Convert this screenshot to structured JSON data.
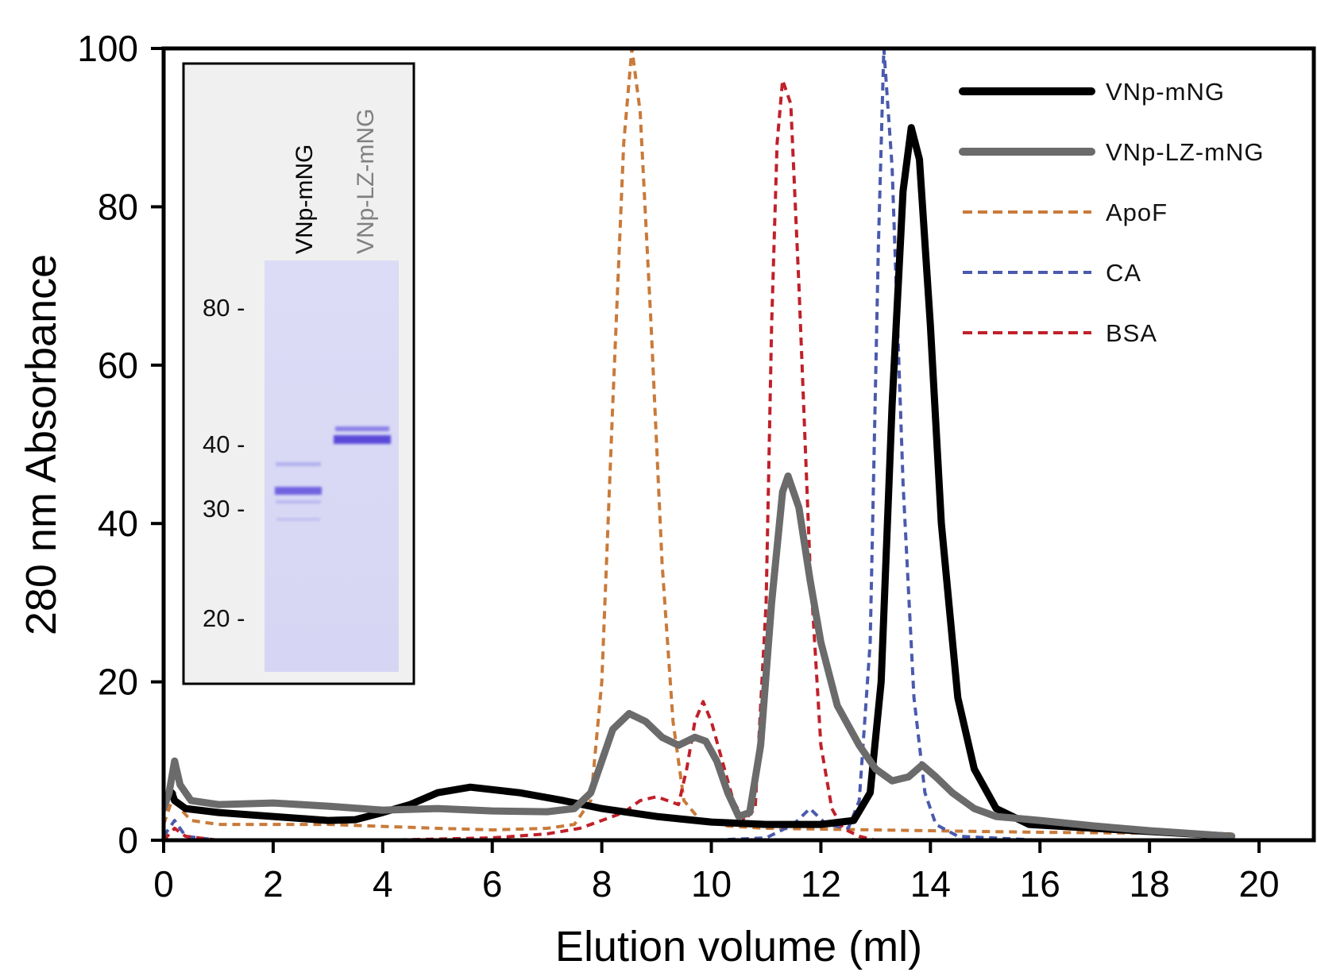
{
  "chart_data": {
    "type": "line",
    "title": "",
    "xlabel": "Elution volume (ml)",
    "ylabel": "280 nm Absorbance",
    "xlim": [
      0,
      21
    ],
    "ylim": [
      0,
      100
    ],
    "xticks": [
      0,
      2,
      4,
      6,
      8,
      10,
      12,
      14,
      16,
      18,
      20
    ],
    "yticks": [
      0,
      20,
      40,
      60,
      80,
      100
    ],
    "grid": false,
    "legend_position": "top-right",
    "series": [
      {
        "name": "VNp-mNG",
        "style": "solid-thick",
        "color": "#000000",
        "points": [
          [
            0,
            5
          ],
          [
            0.15,
            6
          ],
          [
            0.2,
            5
          ],
          [
            0.4,
            4
          ],
          [
            1,
            3.5
          ],
          [
            2,
            3
          ],
          [
            3,
            2.5
          ],
          [
            3.5,
            2.6
          ],
          [
            4,
            3.5
          ],
          [
            4.5,
            4.5
          ],
          [
            5,
            6
          ],
          [
            5.6,
            6.7
          ],
          [
            6.5,
            6
          ],
          [
            7.3,
            5
          ],
          [
            8,
            4
          ],
          [
            9,
            3
          ],
          [
            10,
            2.3
          ],
          [
            11,
            2
          ],
          [
            12,
            2
          ],
          [
            12.6,
            2.5
          ],
          [
            12.9,
            6
          ],
          [
            13.1,
            20
          ],
          [
            13.3,
            55
          ],
          [
            13.5,
            82
          ],
          [
            13.65,
            90
          ],
          [
            13.8,
            86
          ],
          [
            14,
            65
          ],
          [
            14.2,
            40
          ],
          [
            14.5,
            18
          ],
          [
            14.8,
            9
          ],
          [
            15.2,
            4
          ],
          [
            15.8,
            2
          ],
          [
            17,
            1.5
          ],
          [
            19.5,
            0.5
          ]
        ]
      },
      {
        "name": "VNp-LZ-mNG",
        "style": "solid-thick",
        "color": "#6b6b6b",
        "points": [
          [
            0,
            4
          ],
          [
            0.1,
            6
          ],
          [
            0.2,
            10
          ],
          [
            0.3,
            7
          ],
          [
            0.5,
            5
          ],
          [
            1,
            4.5
          ],
          [
            2,
            4.7
          ],
          [
            3,
            4.3
          ],
          [
            4,
            3.8
          ],
          [
            5,
            4
          ],
          [
            6,
            3.7
          ],
          [
            7,
            3.6
          ],
          [
            7.5,
            4
          ],
          [
            7.8,
            6
          ],
          [
            8,
            10
          ],
          [
            8.2,
            14
          ],
          [
            8.5,
            16
          ],
          [
            8.8,
            15
          ],
          [
            9.1,
            13
          ],
          [
            9.4,
            12
          ],
          [
            9.7,
            13
          ],
          [
            9.9,
            12.5
          ],
          [
            10.1,
            10
          ],
          [
            10.3,
            6
          ],
          [
            10.5,
            3
          ],
          [
            10.7,
            3.5
          ],
          [
            10.9,
            12
          ],
          [
            11.1,
            30
          ],
          [
            11.3,
            44
          ],
          [
            11.4,
            46
          ],
          [
            11.6,
            42
          ],
          [
            11.8,
            33
          ],
          [
            12,
            25
          ],
          [
            12.3,
            17
          ],
          [
            12.7,
            12
          ],
          [
            13,
            9
          ],
          [
            13.3,
            7.5
          ],
          [
            13.6,
            8
          ],
          [
            13.85,
            9.5
          ],
          [
            14.1,
            8
          ],
          [
            14.4,
            6
          ],
          [
            14.8,
            4
          ],
          [
            15.2,
            3
          ],
          [
            16,
            2.5
          ],
          [
            17,
            1.8
          ],
          [
            18,
            1.2
          ],
          [
            19.5,
            0.5
          ]
        ]
      },
      {
        "name": "ApoF",
        "style": "dashed",
        "color": "#c97a3a",
        "points": [
          [
            0,
            2
          ],
          [
            0.1,
            4
          ],
          [
            0.2,
            6
          ],
          [
            0.3,
            4
          ],
          [
            0.5,
            2.5
          ],
          [
            1,
            2
          ],
          [
            3,
            2
          ],
          [
            5,
            1.5
          ],
          [
            6,
            1.3
          ],
          [
            7,
            1.5
          ],
          [
            7.5,
            2
          ],
          [
            7.8,
            5
          ],
          [
            8,
            20
          ],
          [
            8.2,
            55
          ],
          [
            8.4,
            88
          ],
          [
            8.55,
            100
          ],
          [
            8.7,
            92
          ],
          [
            8.9,
            65
          ],
          [
            9.1,
            35
          ],
          [
            9.3,
            15
          ],
          [
            9.5,
            5
          ],
          [
            9.8,
            2.5
          ],
          [
            10.3,
            1.8
          ],
          [
            11,
            1.5
          ],
          [
            14,
            1.2
          ],
          [
            16,
            1
          ],
          [
            19.5,
            0.8
          ]
        ]
      },
      {
        "name": "CA",
        "style": "dashed",
        "color": "#4a5aad",
        "points": [
          [
            0,
            0.5
          ],
          [
            0.2,
            2.5
          ],
          [
            0.4,
            0.5
          ],
          [
            1,
            0
          ],
          [
            10,
            0
          ],
          [
            11,
            0.3
          ],
          [
            11.5,
            2
          ],
          [
            11.8,
            4
          ],
          [
            12.1,
            2
          ],
          [
            12.5,
            1.5
          ],
          [
            12.7,
            5
          ],
          [
            12.9,
            25
          ],
          [
            13.05,
            75
          ],
          [
            13.15,
            100
          ],
          [
            13.3,
            85
          ],
          [
            13.5,
            45
          ],
          [
            13.7,
            18
          ],
          [
            13.9,
            6
          ],
          [
            14.1,
            2
          ],
          [
            14.5,
            0.5
          ],
          [
            16,
            0
          ],
          [
            19.5,
            0
          ]
        ]
      },
      {
        "name": "BSA",
        "style": "dashed",
        "color": "#c0202a",
        "points": [
          [
            0,
            0
          ],
          [
            0.2,
            1.5
          ],
          [
            0.4,
            0.5
          ],
          [
            1,
            0
          ],
          [
            4,
            0
          ],
          [
            6,
            0.3
          ],
          [
            7,
            0.8
          ],
          [
            7.6,
            1.5
          ],
          [
            8,
            2.5
          ],
          [
            8.4,
            3.5
          ],
          [
            8.7,
            5
          ],
          [
            9,
            5.5
          ],
          [
            9.2,
            5
          ],
          [
            9.4,
            4.5
          ],
          [
            9.55,
            9
          ],
          [
            9.7,
            15
          ],
          [
            9.85,
            17.5
          ],
          [
            10,
            15
          ],
          [
            10.2,
            10
          ],
          [
            10.4,
            5
          ],
          [
            10.6,
            2.5
          ],
          [
            10.8,
            4
          ],
          [
            11,
            30
          ],
          [
            11.1,
            65
          ],
          [
            11.2,
            88
          ],
          [
            11.3,
            96
          ],
          [
            11.45,
            93
          ],
          [
            11.6,
            70
          ],
          [
            11.8,
            35
          ],
          [
            12,
            12
          ],
          [
            12.2,
            4
          ],
          [
            12.4,
            1.5
          ],
          [
            12.7,
            0.5
          ],
          [
            13,
            0
          ],
          [
            19.5,
            0
          ]
        ]
      }
    ],
    "inset": {
      "lanes": [
        "VNp-mNG",
        "VNp-LZ-mNG"
      ],
      "lane_colors": [
        "#000000",
        "#808080"
      ],
      "markers": [
        "80 -",
        "40 -",
        "30 -",
        "20 -"
      ],
      "marker_kda": [
        80,
        40,
        30,
        20
      ]
    }
  }
}
